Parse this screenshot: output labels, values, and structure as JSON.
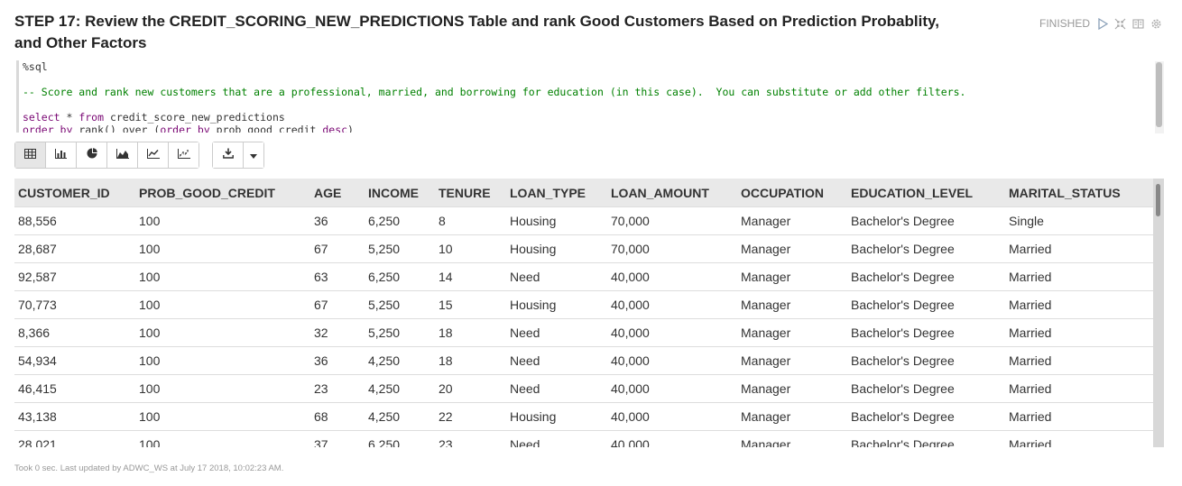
{
  "paragraph": {
    "title": "STEP 17: Review the CREDIT_SCORING_NEW_PREDICTIONS Table and rank Good Customers Based on Prediction Probablity, and Other Factors",
    "status": "FINISHED",
    "icons": [
      "run-icon",
      "hide-output-icon",
      "book-icon",
      "settings-gear-icon"
    ]
  },
  "editor": {
    "line1": "%sql",
    "line2": "-- Score and rank new customers that are a professional, married, and borrowing for education (in this case).  You can substitute or add other filters.",
    "line3_kw1": "select",
    "line3_mid": " * ",
    "line3_kw2": "from",
    "line3_rest": " credit_score_new_predictions",
    "line4_kw1": "order by",
    "line4_mid": " rank() over (",
    "line4_kw2": "order by",
    "line4_rest": " prob_good_credit ",
    "line4_kw3": "desc",
    "line4_end": ")"
  },
  "toolbar": {
    "buttons": [
      "table-icon",
      "bar-chart-icon",
      "pie-chart-icon",
      "area-chart-icon",
      "line-chart-icon",
      "scatter-chart-icon"
    ],
    "download": "download-icon",
    "dropdown": "caret-down-icon"
  },
  "table": {
    "columns": [
      "CUSTOMER_ID",
      "PROB_GOOD_CREDIT",
      "AGE",
      "INCOME",
      "TENURE",
      "LOAN_TYPE",
      "LOAN_AMOUNT",
      "OCCUPATION",
      "EDUCATION_LEVEL",
      "MARITAL_STATUS"
    ],
    "rows": [
      [
        "88,556",
        "100",
        "36",
        "6,250",
        "8",
        "Housing",
        "70,000",
        "Manager",
        "Bachelor's Degree",
        "Single"
      ],
      [
        "28,687",
        "100",
        "67",
        "5,250",
        "10",
        "Housing",
        "70,000",
        "Manager",
        "Bachelor's Degree",
        "Married"
      ],
      [
        "92,587",
        "100",
        "63",
        "6,250",
        "14",
        "Need",
        "40,000",
        "Manager",
        "Bachelor's Degree",
        "Married"
      ],
      [
        "70,773",
        "100",
        "67",
        "5,250",
        "15",
        "Housing",
        "40,000",
        "Manager",
        "Bachelor's Degree",
        "Married"
      ],
      [
        "8,366",
        "100",
        "32",
        "5,250",
        "18",
        "Need",
        "40,000",
        "Manager",
        "Bachelor's Degree",
        "Married"
      ],
      [
        "54,934",
        "100",
        "36",
        "4,250",
        "18",
        "Need",
        "40,000",
        "Manager",
        "Bachelor's Degree",
        "Married"
      ],
      [
        "46,415",
        "100",
        "23",
        "4,250",
        "20",
        "Need",
        "40,000",
        "Manager",
        "Bachelor's Degree",
        "Married"
      ],
      [
        "43,138",
        "100",
        "68",
        "4,250",
        "22",
        "Housing",
        "40,000",
        "Manager",
        "Bachelor's Degree",
        "Married"
      ],
      [
        "28,021",
        "100",
        "37",
        "6,250",
        "23",
        "Need",
        "40,000",
        "Manager",
        "Bachelor's Degree",
        "Married"
      ]
    ]
  },
  "footer": {
    "text": "Took 0 sec. Last updated by ADWC_WS at July 17 2018, 10:02:23 AM."
  }
}
